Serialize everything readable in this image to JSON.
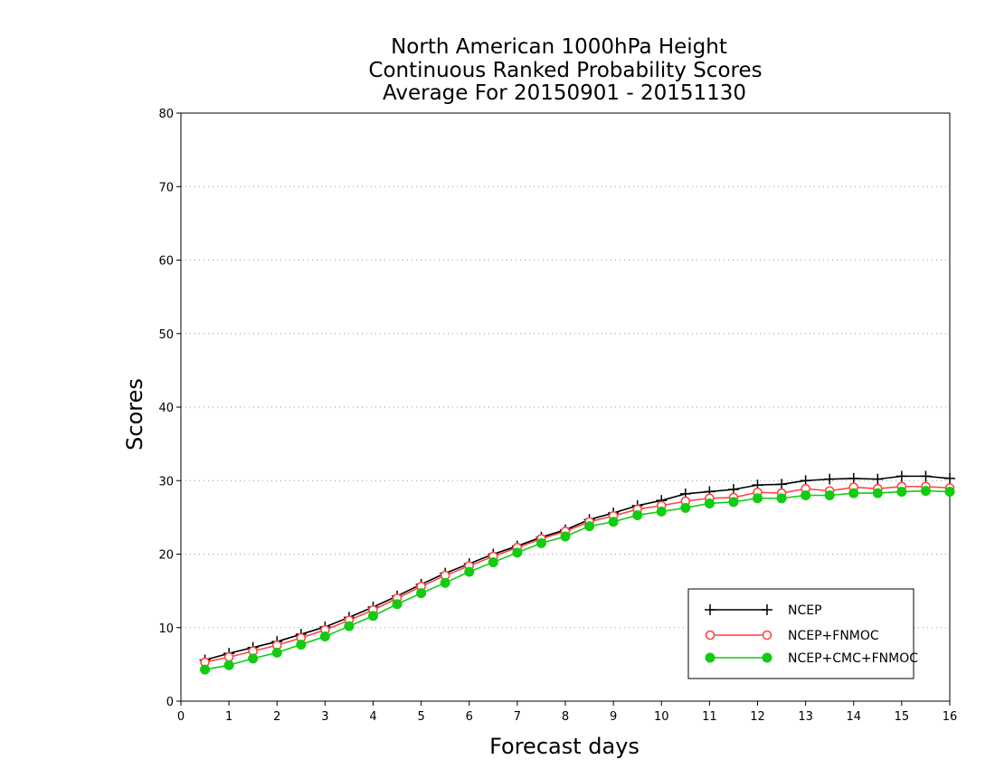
{
  "chart_data": {
    "type": "line",
    "title_lines": [
      "North American 1000hPa Height",
      "Continuous Ranked Probability Scores",
      "Average For 20150901 - 20151130"
    ],
    "xlabel": "Forecast days",
    "ylabel": "Scores",
    "xlim": [
      0,
      16
    ],
    "ylim": [
      0,
      80
    ],
    "xticks": [
      "0",
      "1",
      "2",
      "3",
      "4",
      "5",
      "6",
      "7",
      "8",
      "9",
      "10",
      "11",
      "12",
      "13",
      "14",
      "15",
      "16"
    ],
    "yticks": [
      "0",
      "10",
      "20",
      "30",
      "40",
      "50",
      "60",
      "70",
      "80"
    ],
    "grid": "horizontal dotted",
    "legend_position": "bottom-right",
    "x": [
      0.5,
      1,
      1.5,
      2,
      2.5,
      3,
      3.5,
      4,
      4.5,
      5,
      5.5,
      6,
      6.5,
      7,
      7.5,
      8,
      8.5,
      9,
      9.5,
      10,
      10.5,
      11,
      11.5,
      12,
      12.5,
      13,
      13.5,
      14,
      14.5,
      15,
      15.5,
      16
    ],
    "series": [
      {
        "name": "NCEP",
        "color": "#000000",
        "marker": "plus",
        "values": [
          5.6,
          6.5,
          7.3,
          8.1,
          9.1,
          10.1,
          11.4,
          12.8,
          14.3,
          15.9,
          17.4,
          18.7,
          20.0,
          21.1,
          22.3,
          23.3,
          24.7,
          25.6,
          26.6,
          27.3,
          28.2,
          28.5,
          28.8,
          29.4,
          29.5,
          30.0,
          30.2,
          30.3,
          30.2,
          30.6,
          30.6,
          30.3
        ]
      },
      {
        "name": "NCEP+FNMOC",
        "color": "#ff4444",
        "marker": "open-circle",
        "values": [
          5.3,
          6.0,
          6.8,
          7.6,
          8.6,
          9.7,
          11.0,
          12.4,
          14.0,
          15.6,
          17.1,
          18.4,
          19.7,
          20.9,
          22.1,
          23.1,
          24.4,
          25.2,
          26.1,
          26.6,
          27.2,
          27.6,
          27.7,
          28.4,
          28.3,
          28.9,
          28.6,
          29.1,
          28.9,
          29.2,
          29.2,
          29.0
        ]
      },
      {
        "name": "NCEP+CMC+FNMOC",
        "color": "#11cc11",
        "marker": "filled-circle",
        "values": [
          4.3,
          4.9,
          5.8,
          6.6,
          7.7,
          8.8,
          10.2,
          11.6,
          13.2,
          14.7,
          16.1,
          17.6,
          18.9,
          20.2,
          21.5,
          22.4,
          23.8,
          24.4,
          25.3,
          25.8,
          26.3,
          26.9,
          27.1,
          27.6,
          27.6,
          28.0,
          28.0,
          28.3,
          28.3,
          28.5,
          28.6,
          28.5
        ]
      }
    ]
  }
}
